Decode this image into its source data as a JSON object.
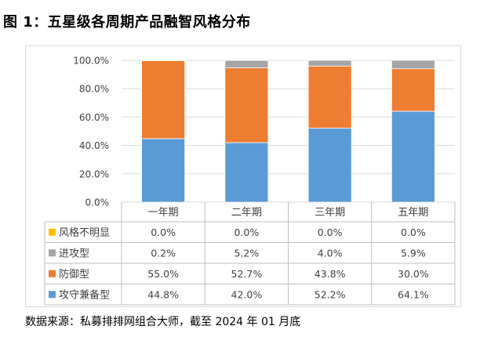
{
  "title": "图 1：五星级各周期产品融智风格分布",
  "source": "数据来源：私募排排网组合大师，截至 2024 年 01 月底",
  "chart_data": {
    "type": "stacked-bar",
    "categories": [
      "一年期",
      "二年期",
      "三年期",
      "五年期"
    ],
    "yaxis_ticks": [
      "0.0%",
      "20.0%",
      "40.0%",
      "60.0%",
      "80.0%",
      "100.0%"
    ],
    "ylim": [
      0,
      100
    ],
    "series": [
      {
        "name": "攻守兼备型",
        "color": "#5b9bd5",
        "values": [
          44.8,
          42.0,
          52.2,
          64.1
        ],
        "labels": [
          "44.8%",
          "42.0%",
          "52.2%",
          "64.1%"
        ]
      },
      {
        "name": "防御型",
        "color": "#ed7d31",
        "values": [
          55.0,
          52.7,
          43.8,
          30.0
        ],
        "labels": [
          "55.0%",
          "52.7%",
          "43.8%",
          "30.0%"
        ]
      },
      {
        "name": "进攻型",
        "color": "#a5a5a5",
        "values": [
          0.2,
          5.2,
          4.0,
          5.9
        ],
        "labels": [
          "0.2%",
          "5.2%",
          "4.0%",
          "5.9%"
        ]
      },
      {
        "name": "风格不明显",
        "color": "#ffc000",
        "values": [
          0.0,
          0.0,
          0.0,
          0.0
        ],
        "labels": [
          "0.0%",
          "0.0%",
          "0.0%",
          "0.0%"
        ]
      }
    ]
  }
}
